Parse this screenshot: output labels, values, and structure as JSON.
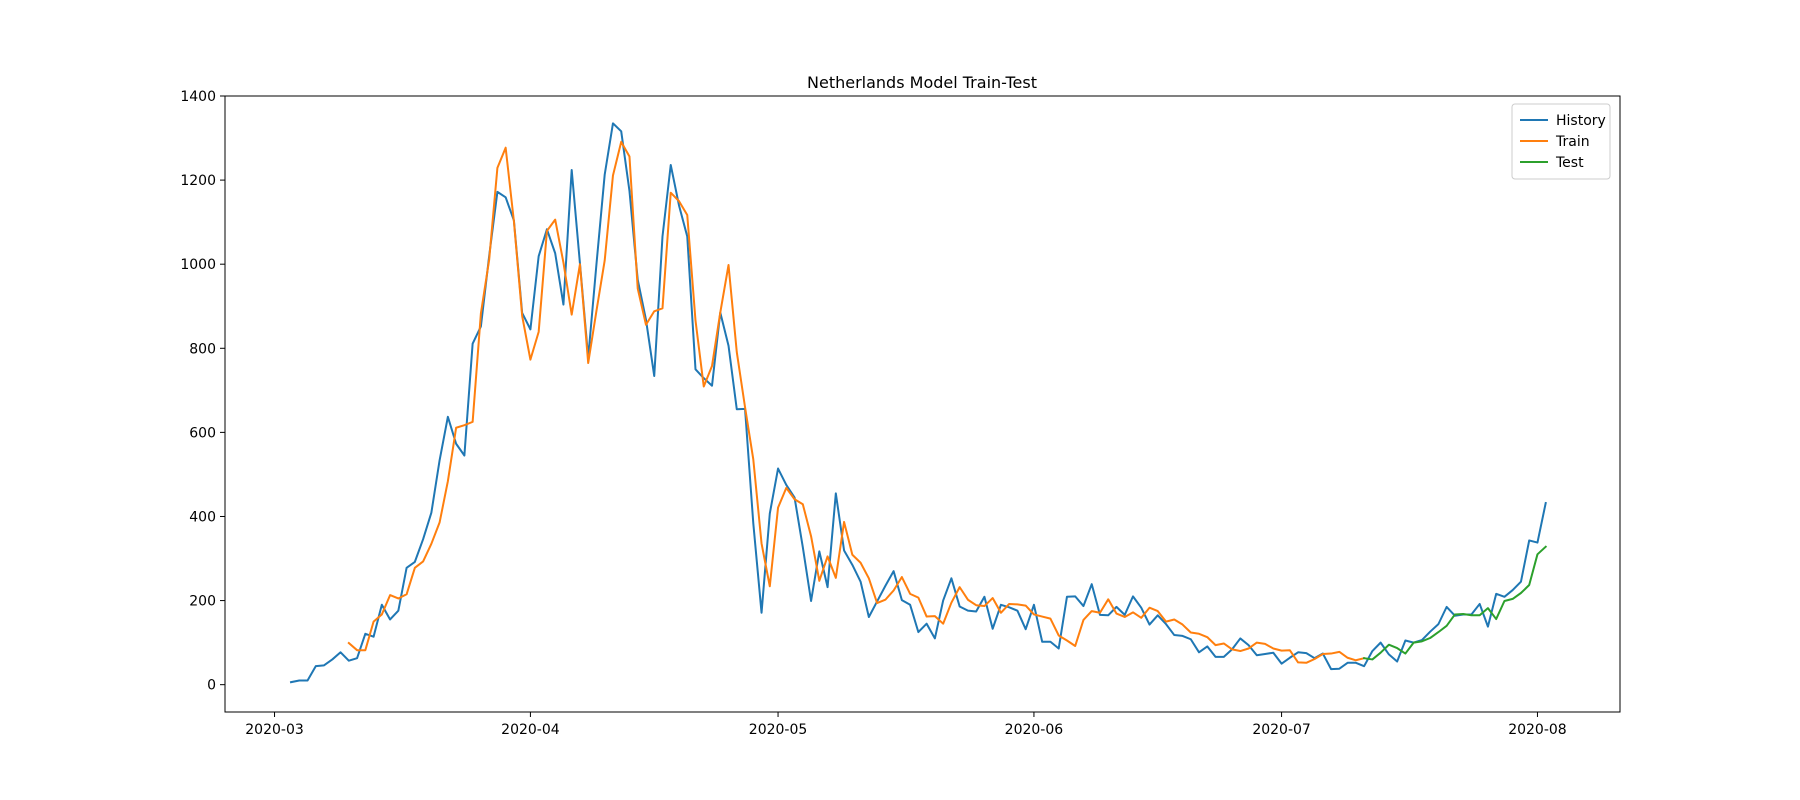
{
  "chart_data": {
    "type": "line",
    "title": "Netherlands Model Train-Test",
    "xlabel": "",
    "ylabel": "",
    "x_axis": {
      "type": "date",
      "range": [
        "2020-02-24",
        "2020-08-11"
      ],
      "ticks": [
        "2020-03-01",
        "2020-04-01",
        "2020-05-01",
        "2020-06-01",
        "2020-07-01",
        "2020-08-01"
      ],
      "tick_labels": [
        "2020-03",
        "2020-04",
        "2020-05",
        "2020-06",
        "2020-07",
        "2020-08"
      ]
    },
    "y_axis": {
      "range": [
        -65,
        1400
      ],
      "ticks": [
        0,
        200,
        400,
        600,
        800,
        1000,
        1200,
        1400
      ]
    },
    "grid": false,
    "legend_position": "top-right",
    "series": [
      {
        "name": "History",
        "color": "#1f77b4",
        "start_date": "2020-03-03",
        "values": [
          6,
          10,
          10,
          44,
          46,
          60,
          77,
          57,
          63,
          121,
          114,
          190,
          155,
          176,
          278,
          292,
          346,
          409,
          534,
          637,
          573,
          545,
          811,
          852,
          1019,
          1172,
          1159,
          1104,
          884,
          845,
          1019,
          1083,
          1026,
          904,
          1224,
          1002,
          778,
          1000,
          1213,
          1335,
          1316,
          1174,
          963,
          868,
          734,
          1066,
          1236,
          1140,
          1066,
          750,
          729,
          711,
          885,
          806,
          655,
          656,
          384,
          171,
          407,
          514,
          475,
          445,
          327,
          199,
          317,
          232,
          455,
          319,
          285,
          245,
          161,
          198,
          235,
          270,
          201,
          190,
          125,
          145,
          110,
          200,
          253,
          186,
          176,
          174,
          209,
          133,
          190,
          184,
          176,
          132,
          190,
          102,
          102,
          86,
          209,
          210,
          187,
          239,
          166,
          165,
          185,
          166,
          210,
          183,
          143,
          165,
          144,
          118,
          116,
          108,
          77,
          91,
          66,
          66,
          84,
          110,
          94,
          70,
          73,
          76,
          50,
          64,
          77,
          75,
          63,
          74,
          37,
          38,
          52,
          52,
          44,
          80,
          100,
          72,
          55,
          105,
          100,
          106,
          126,
          144,
          185,
          164,
          167,
          167,
          192,
          138,
          216,
          209,
          225,
          245,
          343,
          338,
          432
        ]
      },
      {
        "name": "Train",
        "color": "#ff7f0e",
        "start_date": "2020-03-10",
        "values": [
          99,
          82,
          82,
          150,
          167,
          213,
          205,
          215,
          278,
          293,
          335,
          386,
          484,
          611,
          617,
          625,
          883,
          1010,
          1229,
          1277,
          1102,
          877,
          773,
          839,
          1079,
          1106,
          1004,
          880,
          1000,
          765,
          889,
          1009,
          1211,
          1291,
          1256,
          942,
          856,
          888,
          895,
          1170,
          1150,
          1117,
          866,
          709,
          758,
          885,
          998,
          791,
          660,
          536,
          336,
          234,
          421,
          468,
          441,
          429,
          353,
          247,
          305,
          254,
          387,
          309,
          290,
          253,
          194,
          202,
          224,
          256,
          216,
          207,
          162,
          163,
          145,
          195,
          232,
          202,
          189,
          187,
          206,
          171,
          192,
          191,
          188,
          167,
          162,
          157,
          117,
          105,
          92,
          154,
          175,
          171,
          203,
          169,
          161,
          172,
          159,
          183,
          175,
          150,
          155,
          143,
          124,
          121,
          113,
          94,
          98,
          84,
          80,
          86,
          100,
          97,
          86,
          81,
          82,
          53,
          52,
          61,
          73,
          74,
          78,
          64,
          58,
          63
        ]
      },
      {
        "name": "Test",
        "color": "#2ca02c",
        "start_date": "2020-07-11",
        "values": [
          63,
          60,
          76,
          95,
          87,
          74,
          100,
          103,
          111,
          125,
          140,
          167,
          168,
          165,
          165,
          182,
          156,
          199,
          204,
          218,
          237,
          310,
          328
        ]
      }
    ]
  }
}
